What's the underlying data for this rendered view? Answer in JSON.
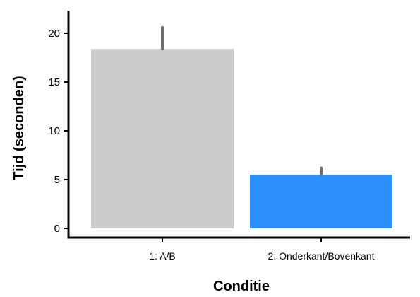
{
  "chart_data": {
    "type": "bar",
    "categories": [
      "1: A/B",
      "2: Onderkant/Bovenkant"
    ],
    "values": [
      18.4,
      5.5
    ],
    "error_upper": [
      20.6,
      6.2
    ],
    "colors": [
      "#cccccc",
      "#2b8fff"
    ],
    "error_color": "#6e6e6e",
    "xlabel": "Conditie",
    "ylabel": "Tijd (seconden)",
    "yticks": [
      0,
      5,
      10,
      15,
      20
    ],
    "ylim": [
      0,
      22
    ],
    "grid": false,
    "legend": "none"
  }
}
